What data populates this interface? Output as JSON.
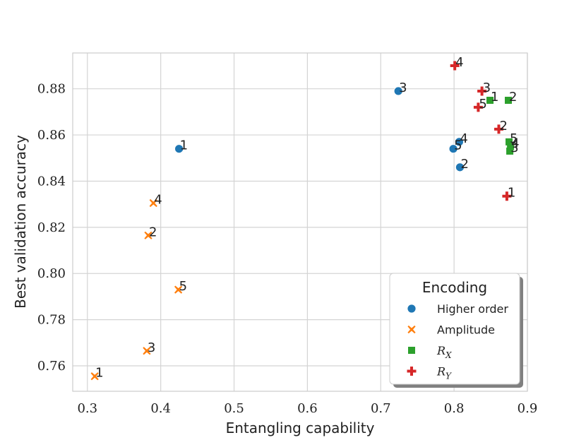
{
  "chart_data": {
    "type": "scatter",
    "title": "",
    "xlabel": "Entangling capability",
    "ylabel": "Best validation accuracy",
    "xlim": [
      0.28,
      0.9
    ],
    "ylim": [
      0.749,
      0.8955
    ],
    "xticks": [
      0.3,
      0.4,
      0.5,
      0.6,
      0.7,
      0.8,
      0.9
    ],
    "xtick_labels": [
      "0.3",
      "0.4",
      "0.5",
      "0.6",
      "0.7",
      "0.8",
      "0.9"
    ],
    "yticks": [
      0.76,
      0.78,
      0.8,
      0.82,
      0.84,
      0.86,
      0.88
    ],
    "ytick_labels": [
      "0.76",
      "0.78",
      "0.80",
      "0.82",
      "0.84",
      "0.86",
      "0.88"
    ],
    "grid": true,
    "legend": {
      "title": "Encoding",
      "placement": "lower-right"
    },
    "series": [
      {
        "name": "Higher order",
        "legend_label": "Higher order",
        "legend_sub": "",
        "marker": "circle",
        "color": "#1f77b4",
        "points": [
          {
            "x": 0.425,
            "y": 0.854,
            "label": "1"
          },
          {
            "x": 0.808,
            "y": 0.846,
            "label": "2"
          },
          {
            "x": 0.724,
            "y": 0.879,
            "label": "3"
          },
          {
            "x": 0.807,
            "y": 0.857,
            "label": "4"
          },
          {
            "x": 0.799,
            "y": 0.854,
            "label": "5"
          }
        ]
      },
      {
        "name": "Amplitude",
        "legend_label": "Amplitude",
        "legend_sub": "",
        "marker": "x",
        "color": "#ff7f0e",
        "points": [
          {
            "x": 0.31,
            "y": 0.7555,
            "label": "1"
          },
          {
            "x": 0.383,
            "y": 0.8165,
            "label": "2"
          },
          {
            "x": 0.381,
            "y": 0.7665,
            "label": "3"
          },
          {
            "x": 0.39,
            "y": 0.8305,
            "label": "4"
          },
          {
            "x": 0.424,
            "y": 0.793,
            "label": "5"
          }
        ]
      },
      {
        "name": "R_X",
        "legend_label": "R",
        "legend_sub": "X",
        "marker": "square",
        "color": "#2ca02c",
        "points": [
          {
            "x": 0.849,
            "y": 0.875,
            "label": "1"
          },
          {
            "x": 0.874,
            "y": 0.875,
            "label": "2"
          },
          {
            "x": 0.876,
            "y": 0.853,
            "label": "3"
          },
          {
            "x": 0.877,
            "y": 0.855,
            "label": "4"
          },
          {
            "x": 0.875,
            "y": 0.857,
            "label": "5"
          }
        ]
      },
      {
        "name": "R_Y",
        "legend_label": "R",
        "legend_sub": "Y",
        "marker": "plus",
        "color": "#d62728",
        "points": [
          {
            "x": 0.872,
            "y": 0.8335,
            "label": "1"
          },
          {
            "x": 0.861,
            "y": 0.8625,
            "label": "2"
          },
          {
            "x": 0.838,
            "y": 0.879,
            "label": "3"
          },
          {
            "x": 0.801,
            "y": 0.89,
            "label": "4"
          },
          {
            "x": 0.833,
            "y": 0.872,
            "label": "5"
          }
        ]
      }
    ]
  }
}
